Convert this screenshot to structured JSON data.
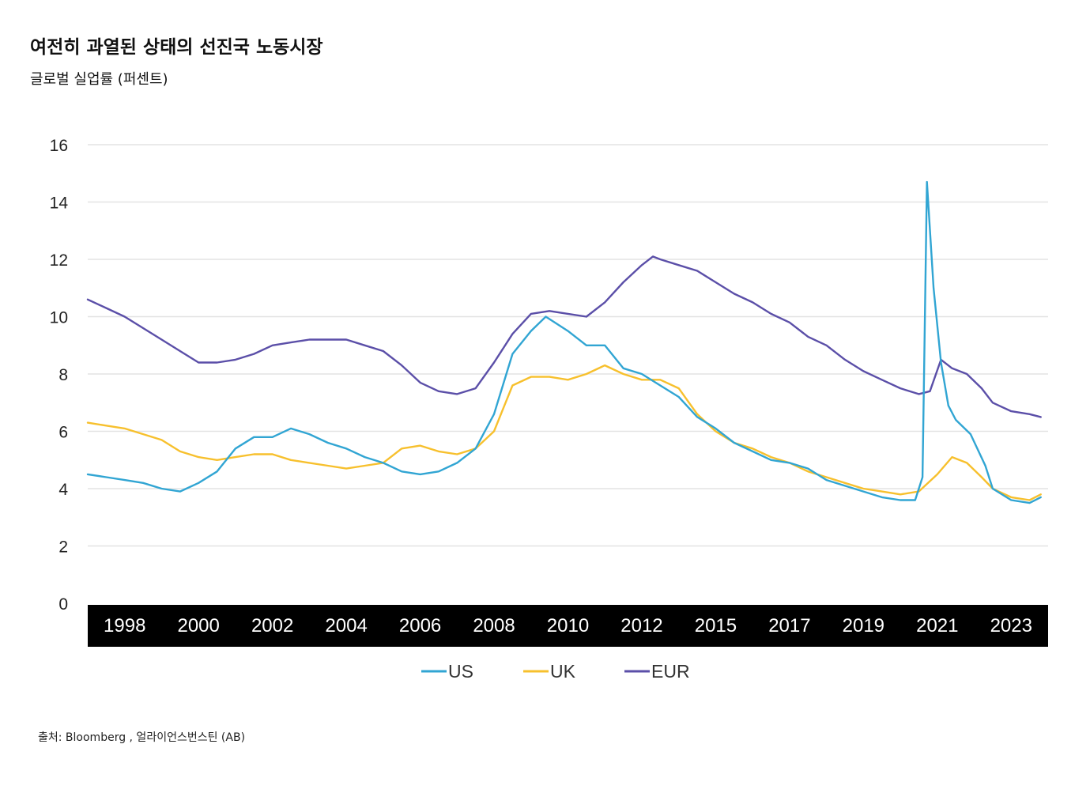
{
  "header": {
    "title": "여전히 과열된 상태의 선진국 노동시장",
    "subtitle": "글로벌 실업률 (퍼센트)"
  },
  "footer": {
    "source": "출처: Bloomberg , 얼라이언스번스틴 (AB)"
  },
  "colors": {
    "US": "#31a5d3",
    "UK": "#f7c02d",
    "EUR": "#5b4fa8",
    "grid": "#e3e3e3",
    "axis_band": "#000000",
    "axis_band_text": "#ffffff"
  },
  "chart_data": {
    "type": "line",
    "title": "여전히 과열된 상태의 선진국 노동시장",
    "subtitle": "글로벌 실업률 (퍼센트)",
    "xlabel": "",
    "ylabel": "",
    "xlim": [
      1997.5,
      2023.5
    ],
    "ylim": [
      0,
      16
    ],
    "y_ticks": [
      "0",
      "2",
      "4",
      "6",
      "8",
      "10",
      "12",
      "14",
      "16"
    ],
    "x_ticks": [
      "1998",
      "2000",
      "2002",
      "2004",
      "2006",
      "2008",
      "2010",
      "2012",
      "2015",
      "2017",
      "2019",
      "2021",
      "2023"
    ],
    "grid": "horizontal",
    "legend_position": "bottom-center",
    "series": [
      {
        "name": "US",
        "points": [
          [
            1997.5,
            4.5
          ],
          [
            1998.0,
            4.4
          ],
          [
            1998.5,
            4.3
          ],
          [
            1999.0,
            4.2
          ],
          [
            1999.5,
            4.0
          ],
          [
            2000.0,
            3.9
          ],
          [
            2000.5,
            4.2
          ],
          [
            2001.0,
            4.6
          ],
          [
            2001.5,
            5.4
          ],
          [
            2002.0,
            5.8
          ],
          [
            2002.5,
            5.8
          ],
          [
            2003.0,
            6.1
          ],
          [
            2003.5,
            5.9
          ],
          [
            2004.0,
            5.6
          ],
          [
            2004.5,
            5.4
          ],
          [
            2005.0,
            5.1
          ],
          [
            2005.5,
            4.9
          ],
          [
            2006.0,
            4.6
          ],
          [
            2006.5,
            4.5
          ],
          [
            2007.0,
            4.6
          ],
          [
            2007.5,
            4.9
          ],
          [
            2008.0,
            5.4
          ],
          [
            2008.5,
            6.6
          ],
          [
            2009.0,
            8.7
          ],
          [
            2009.5,
            9.5
          ],
          [
            2009.9,
            10.0
          ],
          [
            2010.5,
            9.5
          ],
          [
            2011.0,
            9.0
          ],
          [
            2011.5,
            9.0
          ],
          [
            2012.0,
            8.2
          ],
          [
            2012.5,
            8.0
          ],
          [
            2013.0,
            7.6
          ],
          [
            2013.5,
            7.2
          ],
          [
            2014.0,
            6.5
          ],
          [
            2014.5,
            6.1
          ],
          [
            2015.0,
            5.6
          ],
          [
            2015.5,
            5.3
          ],
          [
            2016.0,
            5.0
          ],
          [
            2016.5,
            4.9
          ],
          [
            2017.0,
            4.7
          ],
          [
            2017.5,
            4.3
          ],
          [
            2018.0,
            4.1
          ],
          [
            2018.5,
            3.9
          ],
          [
            2019.0,
            3.7
          ],
          [
            2019.5,
            3.6
          ],
          [
            2019.9,
            3.6
          ],
          [
            2020.1,
            4.4
          ],
          [
            2020.22,
            14.7
          ],
          [
            2020.4,
            11.0
          ],
          [
            2020.6,
            8.4
          ],
          [
            2020.8,
            6.9
          ],
          [
            2021.0,
            6.4
          ],
          [
            2021.4,
            5.9
          ],
          [
            2021.8,
            4.8
          ],
          [
            2022.0,
            4.0
          ],
          [
            2022.5,
            3.6
          ],
          [
            2023.0,
            3.5
          ],
          [
            2023.3,
            3.7
          ]
        ]
      },
      {
        "name": "UK",
        "points": [
          [
            1997.5,
            6.3
          ],
          [
            1998.0,
            6.2
          ],
          [
            1998.5,
            6.1
          ],
          [
            1999.0,
            5.9
          ],
          [
            1999.5,
            5.7
          ],
          [
            2000.0,
            5.3
          ],
          [
            2000.5,
            5.1
          ],
          [
            2001.0,
            5.0
          ],
          [
            2001.5,
            5.1
          ],
          [
            2002.0,
            5.2
          ],
          [
            2002.5,
            5.2
          ],
          [
            2003.0,
            5.0
          ],
          [
            2003.5,
            4.9
          ],
          [
            2004.0,
            4.8
          ],
          [
            2004.5,
            4.7
          ],
          [
            2005.0,
            4.8
          ],
          [
            2005.5,
            4.9
          ],
          [
            2006.0,
            5.4
          ],
          [
            2006.5,
            5.5
          ],
          [
            2007.0,
            5.3
          ],
          [
            2007.5,
            5.2
          ],
          [
            2008.0,
            5.4
          ],
          [
            2008.5,
            6.0
          ],
          [
            2009.0,
            7.6
          ],
          [
            2009.5,
            7.9
          ],
          [
            2010.0,
            7.9
          ],
          [
            2010.5,
            7.8
          ],
          [
            2011.0,
            8.0
          ],
          [
            2011.5,
            8.3
          ],
          [
            2012.0,
            8.0
          ],
          [
            2012.5,
            7.8
          ],
          [
            2013.0,
            7.8
          ],
          [
            2013.5,
            7.5
          ],
          [
            2014.0,
            6.6
          ],
          [
            2014.5,
            6.0
          ],
          [
            2015.0,
            5.6
          ],
          [
            2015.5,
            5.4
          ],
          [
            2016.0,
            5.1
          ],
          [
            2016.5,
            4.9
          ],
          [
            2017.0,
            4.6
          ],
          [
            2017.5,
            4.4
          ],
          [
            2018.0,
            4.2
          ],
          [
            2018.5,
            4.0
          ],
          [
            2019.0,
            3.9
          ],
          [
            2019.5,
            3.8
          ],
          [
            2020.0,
            3.9
          ],
          [
            2020.5,
            4.5
          ],
          [
            2020.9,
            5.1
          ],
          [
            2021.3,
            4.9
          ],
          [
            2021.7,
            4.4
          ],
          [
            2022.0,
            4.0
          ],
          [
            2022.5,
            3.7
          ],
          [
            2023.0,
            3.6
          ],
          [
            2023.3,
            3.8
          ]
        ]
      },
      {
        "name": "EUR",
        "points": [
          [
            1997.5,
            10.6
          ],
          [
            1998.0,
            10.3
          ],
          [
            1998.5,
            10.0
          ],
          [
            1999.0,
            9.6
          ],
          [
            1999.5,
            9.2
          ],
          [
            2000.0,
            8.8
          ],
          [
            2000.5,
            8.4
          ],
          [
            2001.0,
            8.4
          ],
          [
            2001.5,
            8.5
          ],
          [
            2002.0,
            8.7
          ],
          [
            2002.5,
            9.0
          ],
          [
            2003.0,
            9.1
          ],
          [
            2003.5,
            9.2
          ],
          [
            2004.0,
            9.2
          ],
          [
            2004.5,
            9.2
          ],
          [
            2005.0,
            9.0
          ],
          [
            2005.5,
            8.8
          ],
          [
            2006.0,
            8.3
          ],
          [
            2006.5,
            7.7
          ],
          [
            2007.0,
            7.4
          ],
          [
            2007.5,
            7.3
          ],
          [
            2008.0,
            7.5
          ],
          [
            2008.5,
            8.4
          ],
          [
            2009.0,
            9.4
          ],
          [
            2009.5,
            10.1
          ],
          [
            2010.0,
            10.2
          ],
          [
            2010.5,
            10.1
          ],
          [
            2011.0,
            10.0
          ],
          [
            2011.5,
            10.5
          ],
          [
            2012.0,
            11.2
          ],
          [
            2012.5,
            11.8
          ],
          [
            2012.8,
            12.1
          ],
          [
            2013.0,
            12.0
          ],
          [
            2013.5,
            11.8
          ],
          [
            2014.0,
            11.6
          ],
          [
            2014.5,
            11.2
          ],
          [
            2015.0,
            10.8
          ],
          [
            2015.5,
            10.5
          ],
          [
            2016.0,
            10.1
          ],
          [
            2016.5,
            9.8
          ],
          [
            2017.0,
            9.3
          ],
          [
            2017.5,
            9.0
          ],
          [
            2018.0,
            8.5
          ],
          [
            2018.5,
            8.1
          ],
          [
            2019.0,
            7.8
          ],
          [
            2019.5,
            7.5
          ],
          [
            2020.0,
            7.3
          ],
          [
            2020.3,
            7.4
          ],
          [
            2020.6,
            8.5
          ],
          [
            2020.9,
            8.2
          ],
          [
            2021.3,
            8.0
          ],
          [
            2021.7,
            7.5
          ],
          [
            2022.0,
            7.0
          ],
          [
            2022.5,
            6.7
          ],
          [
            2023.0,
            6.6
          ],
          [
            2023.3,
            6.5
          ]
        ]
      }
    ]
  }
}
